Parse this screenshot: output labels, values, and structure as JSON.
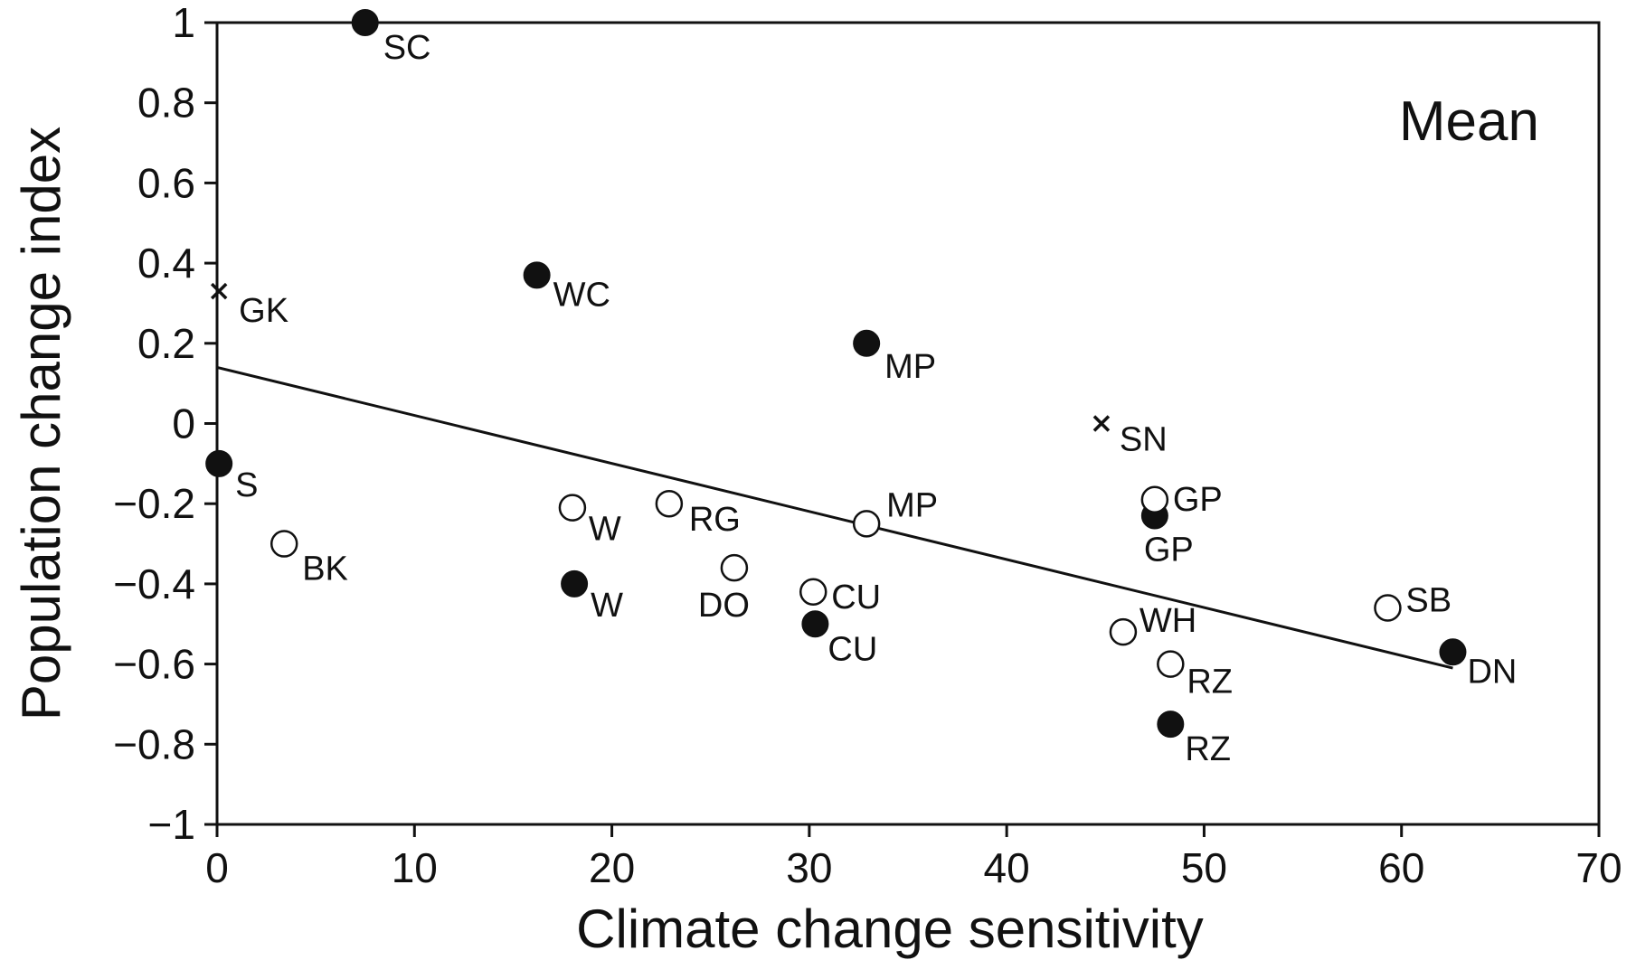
{
  "chart_data": {
    "type": "scatter",
    "title": "",
    "panel_label": "Mean",
    "xlabel": "Climate change sensitivity",
    "ylabel": "Population change index",
    "xlim": [
      0,
      70
    ],
    "ylim": [
      -1,
      1
    ],
    "xticks": [
      0,
      10,
      20,
      30,
      40,
      50,
      60,
      70
    ],
    "xtick_labels": [
      "0",
      "10",
      "20",
      "30",
      "40",
      "50",
      "60",
      "70"
    ],
    "yticks": [
      1,
      0.8,
      0.6,
      0.4,
      0.2,
      0,
      -0.2,
      -0.4,
      -0.6,
      -0.8,
      -1
    ],
    "ytick_labels": [
      "1",
      "0.8",
      "0.6",
      "0.4",
      "0.2",
      "0",
      "−0.2",
      "−0.4",
      "−0.6",
      "−0.8",
      "−1"
    ],
    "grid": false,
    "series": [
      {
        "marker": "filled-circle",
        "points": [
          {
            "label": "SC",
            "x": 7.5,
            "y": 1.0
          },
          {
            "label": "WC",
            "x": 16.2,
            "y": 0.37
          },
          {
            "label": "MP",
            "x": 32.9,
            "y": 0.2
          },
          {
            "label": "S",
            "x": 0.1,
            "y": -0.1
          },
          {
            "label": "W",
            "x": 18.1,
            "y": -0.4
          },
          {
            "label": "CU",
            "x": 30.3,
            "y": -0.5
          },
          {
            "label": "GP",
            "x": 47.5,
            "y": -0.23
          },
          {
            "label": "RZ",
            "x": 48.3,
            "y": -0.75
          },
          {
            "label": "DN",
            "x": 62.6,
            "y": -0.57
          }
        ]
      },
      {
        "marker": "open-circle",
        "points": [
          {
            "label": "BK",
            "x": 3.4,
            "y": -0.3
          },
          {
            "label": "W",
            "x": 18.0,
            "y": -0.21
          },
          {
            "label": "RG",
            "x": 22.9,
            "y": -0.2
          },
          {
            "label": "DO",
            "x": 26.2,
            "y": -0.36
          },
          {
            "label": "MP",
            "x": 32.9,
            "y": -0.25
          },
          {
            "label": "CU",
            "x": 30.2,
            "y": -0.42
          },
          {
            "label": "GP",
            "x": 47.5,
            "y": -0.19
          },
          {
            "label": "WH",
            "x": 45.9,
            "y": -0.52
          },
          {
            "label": "RZ",
            "x": 48.3,
            "y": -0.6
          },
          {
            "label": "SB",
            "x": 59.3,
            "y": -0.46
          }
        ]
      },
      {
        "marker": "cross",
        "points": [
          {
            "label": "GK",
            "x": 0.1,
            "y": 0.33
          },
          {
            "label": "SN",
            "x": 44.8,
            "y": 0.0
          }
        ]
      }
    ],
    "trendline": {
      "x": [
        0,
        62.6
      ],
      "y": [
        0.14,
        -0.61
      ]
    },
    "colors": {
      "ink": "#111111",
      "open_fill": "#ffffff"
    }
  }
}
